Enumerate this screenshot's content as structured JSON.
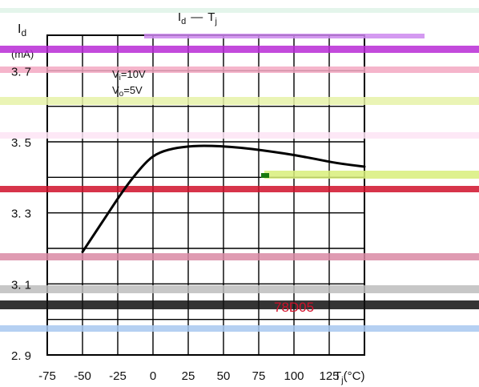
{
  "chart_data": {
    "type": "line",
    "title_symbol": "I",
    "title_symbol_sub": "d",
    "title_dash": "—",
    "title_x_symbol": "T",
    "title_x_symbol_sub": "j",
    "ylabel_symbol": "I",
    "ylabel_symbol_sub": "d",
    "ylabel_unit": "(mA)",
    "xlabel_symbol": "T",
    "xlabel_symbol_sub": "j",
    "xlabel_unit": "(°C)",
    "xlim": [
      -75,
      150
    ],
    "ylim": [
      2.9,
      3.8
    ],
    "x_ticks": [
      -75,
      -50,
      -25,
      0,
      25,
      50,
      75,
      100,
      125
    ],
    "x_tick_labels": [
      "-75",
      "-50",
      "-25",
      "0",
      "25",
      "50",
      "75",
      "100",
      "125"
    ],
    "y_ticks": [
      2.9,
      3.1,
      3.3,
      3.5,
      3.7
    ],
    "y_tick_labels": [
      "2. 9",
      "3. 1",
      "3. 3",
      "3. 5",
      "3. 7"
    ],
    "grid": true,
    "conditions": [
      {
        "symbol": "V",
        "sub": "i",
        "text": "=10V"
      },
      {
        "symbol": "V",
        "sub": "o",
        "text": "=5V"
      }
    ],
    "part_label": "78D05",
    "series": [
      {
        "x": [
          -50,
          -35,
          -20,
          -8,
          0,
          10,
          25,
          40,
          55,
          70,
          85,
          100,
          115,
          130,
          150
        ],
        "values": [
          3.19,
          3.28,
          3.37,
          3.43,
          3.461,
          3.478,
          3.488,
          3.489,
          3.486,
          3.48,
          3.472,
          3.463,
          3.452,
          3.44,
          3.43
        ]
      }
    ],
    "colors": {
      "line": "#000000",
      "accent_red": "#d0102a",
      "accent_green": "#1a7a10"
    }
  }
}
